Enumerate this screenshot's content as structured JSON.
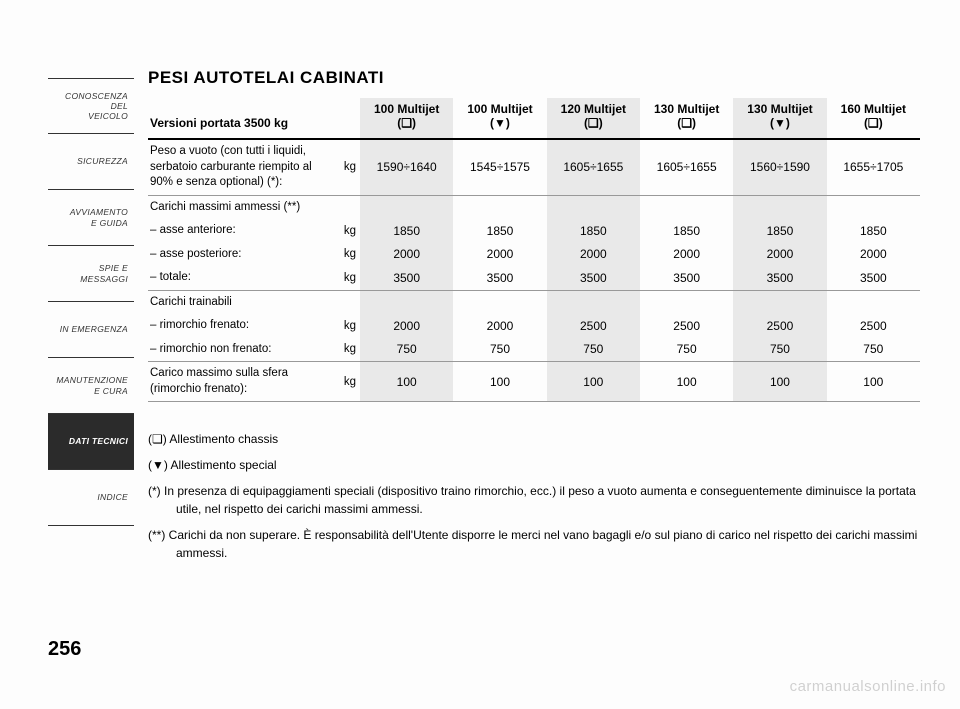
{
  "page_number": "256",
  "watermark": "carmanualsonline.info",
  "sidebar": {
    "items": [
      {
        "lines": [
          "CONOSCENZA",
          "DEL",
          "VEICOLO"
        ],
        "active": false
      },
      {
        "lines": [
          "SICUREZZA"
        ],
        "active": false
      },
      {
        "lines": [
          "AVVIAMENTO",
          "E GUIDA"
        ],
        "active": false
      },
      {
        "lines": [
          "SPIE E",
          "MESSAGGI"
        ],
        "active": false
      },
      {
        "lines": [
          "IN EMERGENZA"
        ],
        "active": false
      },
      {
        "lines": [
          "MANUTENZIONE",
          "E CURA"
        ],
        "active": false
      },
      {
        "lines": [
          "DATI TECNICI"
        ],
        "active": true
      },
      {
        "lines": [
          "INDICE"
        ],
        "active": false
      }
    ]
  },
  "title": "PESI AUTOTELAI CABINATI",
  "table": {
    "header_label": "Versioni portata 3500 kg",
    "columns": [
      {
        "name": "100 Multijet",
        "variant": "(❏)",
        "stripe": true
      },
      {
        "name": "100 Multijet",
        "variant": "(▼)",
        "stripe": false
      },
      {
        "name": "120 Multijet",
        "variant": "(❏)",
        "stripe": true
      },
      {
        "name": "130 Multijet",
        "variant": "(❏)",
        "stripe": false
      },
      {
        "name": "130 Multijet",
        "variant": "(▼)",
        "stripe": true
      },
      {
        "name": "160 Multijet",
        "variant": "(❏)",
        "stripe": false
      }
    ],
    "groups": [
      {
        "rows": [
          {
            "label": "Peso a vuoto (con tutti i liquidi, serbatoio carburante riempito al 90% e senza optional) (*):",
            "unit": "kg",
            "values": [
              "1590÷1640",
              "1545÷1575",
              "1605÷1655",
              "1605÷1655",
              "1560÷1590",
              "1655÷1705"
            ]
          }
        ]
      },
      {
        "rows": [
          {
            "label": "Carichi massimi ammessi (**)",
            "unit": "",
            "values": [
              "",
              "",
              "",
              "",
              "",
              ""
            ]
          },
          {
            "label": "– asse anteriore:",
            "unit": "kg",
            "values": [
              "1850",
              "1850",
              "1850",
              "1850",
              "1850",
              "1850"
            ]
          },
          {
            "label": "– asse posteriore:",
            "unit": "kg",
            "values": [
              "2000",
              "2000",
              "2000",
              "2000",
              "2000",
              "2000"
            ]
          },
          {
            "label": "– totale:",
            "unit": "kg",
            "values": [
              "3500",
              "3500",
              "3500",
              "3500",
              "3500",
              "3500"
            ]
          }
        ]
      },
      {
        "rows": [
          {
            "label": "Carichi trainabili",
            "unit": "",
            "values": [
              "",
              "",
              "",
              "",
              "",
              ""
            ]
          },
          {
            "label": "– rimorchio frenato:",
            "unit": "kg",
            "values": [
              "2000",
              "2000",
              "2500",
              "2500",
              "2500",
              "2500"
            ]
          },
          {
            "label": "– rimorchio non frenato:",
            "unit": "kg",
            "values": [
              "750",
              "750",
              "750",
              "750",
              "750",
              "750"
            ]
          }
        ]
      },
      {
        "rows": [
          {
            "label": "Carico massimo sulla sfera (rimorchio frenato):",
            "unit": "kg",
            "values": [
              "100",
              "100",
              "100",
              "100",
              "100",
              "100"
            ]
          }
        ]
      }
    ]
  },
  "notes": {
    "n1": "(❏) Allestimento chassis",
    "n2": "(▼) Allestimento special",
    "n3": "(*)   In presenza di equipaggiamenti speciali (dispositivo traino rimorchio, ecc.) il peso a vuoto aumenta e conseguentemente diminuisce la portata utile, nel rispetto dei carichi massimi ammessi.",
    "n4": "(**)  Carichi da non superare. È responsabilità dell'Utente disporre le merci nel vano bagagli e/o sul piano di carico nel rispetto dei carichi massimi ammessi."
  },
  "styling": {
    "background_color": "#fdfdfd",
    "stripe_color": "#e9e9e9",
    "text_color": "#000000",
    "sidebar_active_bg": "#2b2b2b",
    "sidebar_active_fg": "#ffffff",
    "separator_color": "#999999",
    "header_rule_color": "#000000",
    "title_fontsize": 17,
    "body_fontsize": 12,
    "label_fontsize": 11.5,
    "sidebar_fontsize": 8.5
  }
}
